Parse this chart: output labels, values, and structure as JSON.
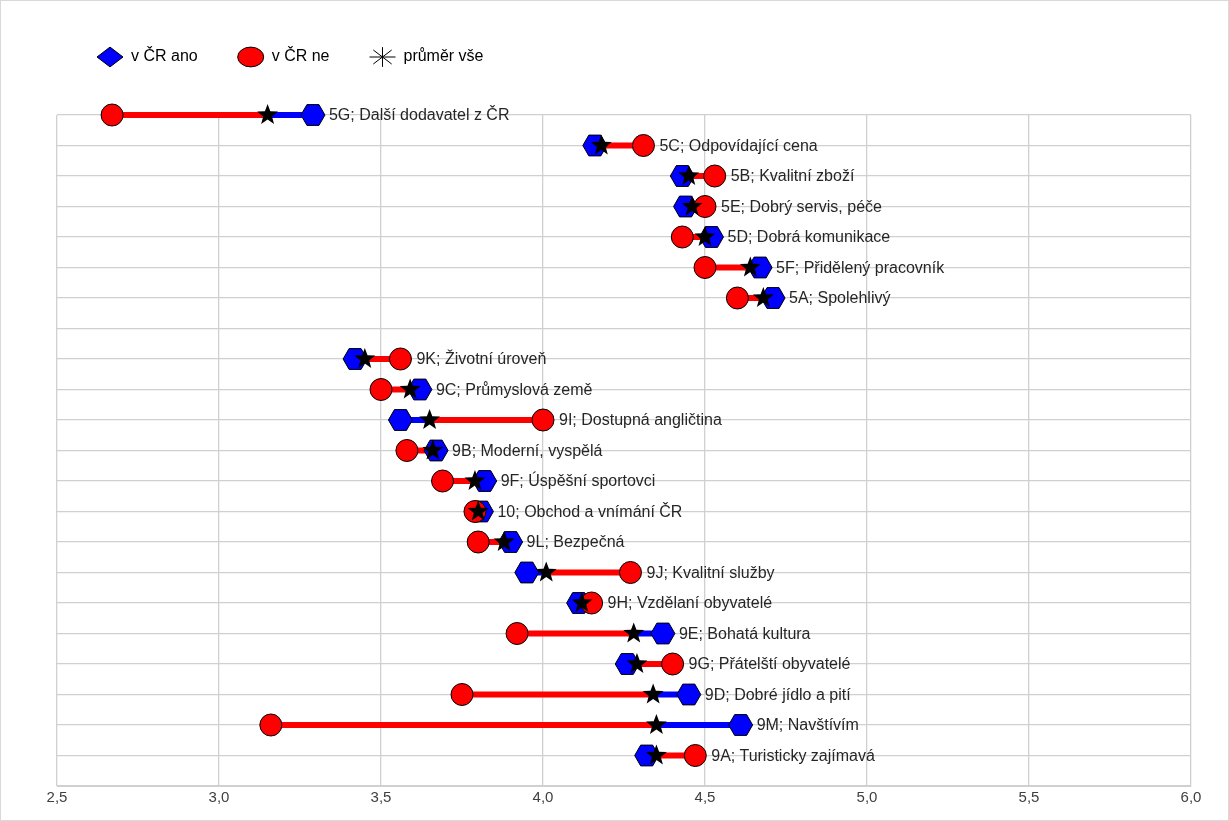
{
  "chart_data": {
    "type": "scatter",
    "orientation": "horizontal",
    "categories": [
      "5G; Další dodavatel z ČR",
      "5C; Odpovídající cena",
      "5B; Kvalitní zboží",
      "5E; Dobrý servis, péče",
      "5D; Dobrá komunikace",
      "5F; Přidělený pracovník",
      "5A; Spolehlivý",
      null,
      "9K; Životní úroveň",
      "9C; Průmyslová země",
      "9I; Dostupná angličtina",
      "9B; Moderní, vyspělá",
      "9F; Úspěšní sportovci",
      "10; Obchod a vnímání ČR",
      "9L; Bezpečná",
      "9J; Kvalitní služby",
      "9H; Vzdělaní obyvatelé",
      "9E; Bohatá kultura",
      "9G; Přátelští obyvatelé",
      "9D; Dobré jídlo a pití",
      "9M; Navštívím",
      "9A; Turisticky zajímavá"
    ],
    "series": [
      {
        "name": "v ČR ano",
        "color": "#0000ff",
        "values": [
          3.29,
          4.16,
          4.43,
          4.44,
          4.52,
          4.67,
          4.71,
          null,
          3.42,
          3.62,
          3.56,
          3.67,
          3.82,
          3.81,
          3.9,
          3.95,
          4.11,
          4.37,
          4.26,
          4.45,
          4.61,
          4.32
        ]
      },
      {
        "name": "v ČR ne",
        "color": "#ff0000",
        "marker": "circle",
        "values": [
          2.67,
          4.31,
          4.53,
          4.5,
          4.43,
          4.5,
          4.6,
          null,
          3.56,
          3.5,
          4.0,
          3.58,
          3.69,
          3.79,
          3.8,
          4.27,
          4.15,
          3.92,
          4.4,
          3.75,
          3.16,
          4.47
        ]
      },
      {
        "name": "průměr vše",
        "color": "#000000",
        "marker": "star",
        "values": [
          3.15,
          4.18,
          4.45,
          4.46,
          4.5,
          4.64,
          4.68,
          null,
          3.45,
          3.59,
          3.65,
          3.66,
          3.79,
          3.8,
          3.88,
          4.01,
          4.12,
          4.28,
          4.29,
          4.34,
          4.35,
          4.35
        ]
      }
    ],
    "xlim": [
      2.5,
      6.0
    ],
    "xticks": [
      {
        "value": 2.5,
        "label": "2,5"
      },
      {
        "value": 3.0,
        "label": "3,0"
      },
      {
        "value": 3.5,
        "label": "3,5"
      },
      {
        "value": 4.0,
        "label": "4,0"
      },
      {
        "value": 4.5,
        "label": "4,5"
      },
      {
        "value": 5.0,
        "label": "5,0"
      },
      {
        "value": 5.5,
        "label": "5,5"
      },
      {
        "value": 6.0,
        "label": "6,0"
      }
    ],
    "grid": true,
    "legend": "top",
    "tick_labels": "x"
  }
}
